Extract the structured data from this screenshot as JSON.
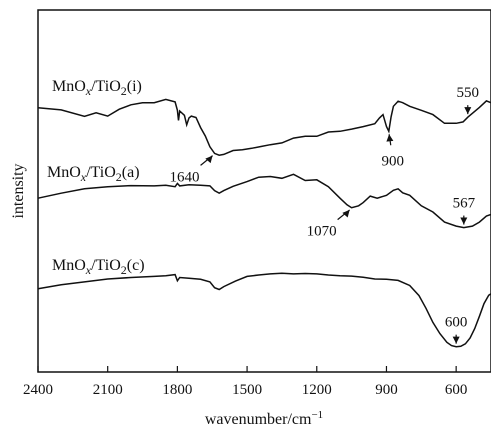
{
  "chart_data": {
    "type": "line",
    "xlabel_base": "wavenumber/cm",
    "xlabel_sup": "−1",
    "ylabel": "intensity",
    "xlim": [
      2400,
      450
    ],
    "ylim": [
      0,
      100
    ],
    "x_reversed": true,
    "x_ticks": [
      2400,
      2100,
      1800,
      1500,
      1200,
      900,
      600
    ],
    "grid": false,
    "series": [
      {
        "name_parts": [
          "MnO",
          "x",
          "/TiO",
          "2",
          "(i)"
        ],
        "points": [
          [
            2400,
            73
          ],
          [
            2300,
            72.4
          ],
          [
            2200,
            70.6
          ],
          [
            2150,
            71.6
          ],
          [
            2100,
            70.7
          ],
          [
            2050,
            72.6
          ],
          [
            2000,
            73.8
          ],
          [
            1950,
            74.4
          ],
          [
            1900,
            74.4
          ],
          [
            1850,
            75.3
          ],
          [
            1810,
            74.6
          ],
          [
            1800,
            72.3
          ],
          [
            1795,
            69.5
          ],
          [
            1790,
            72.1
          ],
          [
            1770,
            70.9
          ],
          [
            1760,
            68.3
          ],
          [
            1750,
            70.2
          ],
          [
            1740,
            70.7
          ],
          [
            1720,
            70.3
          ],
          [
            1700,
            67.5
          ],
          [
            1680,
            65.2
          ],
          [
            1660,
            62.2
          ],
          [
            1640,
            60.4
          ],
          [
            1620,
            59.9
          ],
          [
            1600,
            60.1
          ],
          [
            1560,
            61.2
          ],
          [
            1520,
            61.4
          ],
          [
            1480,
            61.8
          ],
          [
            1440,
            62.3
          ],
          [
            1400,
            62.8
          ],
          [
            1350,
            63.3
          ],
          [
            1300,
            64.6
          ],
          [
            1250,
            65.1
          ],
          [
            1200,
            65.1
          ],
          [
            1150,
            66.3
          ],
          [
            1100,
            66.5
          ],
          [
            1050,
            67.1
          ],
          [
            1000,
            67.8
          ],
          [
            950,
            68.6
          ],
          [
            930,
            70.2
          ],
          [
            915,
            71.1
          ],
          [
            900,
            67.8
          ],
          [
            890,
            66.5
          ],
          [
            880,
            70.5
          ],
          [
            870,
            73.4
          ],
          [
            850,
            74.8
          ],
          [
            830,
            74.4
          ],
          [
            800,
            73.4
          ],
          [
            750,
            72.3
          ],
          [
            700,
            71.1
          ],
          [
            650,
            68.7
          ],
          [
            600,
            68.7
          ],
          [
            570,
            69.1
          ],
          [
            550,
            70.4
          ],
          [
            500,
            73.1
          ],
          [
            470,
            74.9
          ],
          [
            450,
            74.4
          ]
        ]
      },
      {
        "name_parts": [
          "MnO",
          "x",
          "/TiO",
          "2",
          "(a)"
        ],
        "points": [
          [
            2400,
            48
          ],
          [
            2300,
            49.4
          ],
          [
            2200,
            50.6
          ],
          [
            2100,
            51.2
          ],
          [
            2000,
            51.5
          ],
          [
            1900,
            51.4
          ],
          [
            1850,
            51.6
          ],
          [
            1810,
            51.2
          ],
          [
            1800,
            52.1
          ],
          [
            1790,
            51.4
          ],
          [
            1750,
            51.7
          ],
          [
            1700,
            51.6
          ],
          [
            1660,
            51.4
          ],
          [
            1640,
            50.1
          ],
          [
            1620,
            49.4
          ],
          [
            1600,
            50.1
          ],
          [
            1560,
            51.3
          ],
          [
            1500,
            52.6
          ],
          [
            1450,
            53.8
          ],
          [
            1400,
            54
          ],
          [
            1350,
            53.5
          ],
          [
            1300,
            54.6
          ],
          [
            1250,
            52.9
          ],
          [
            1200,
            53.1
          ],
          [
            1150,
            51.2
          ],
          [
            1100,
            48
          ],
          [
            1070,
            46.2
          ],
          [
            1050,
            45.4
          ],
          [
            1020,
            45.9
          ],
          [
            1000,
            46.8
          ],
          [
            970,
            48.6
          ],
          [
            940,
            48
          ],
          [
            900,
            48.8
          ],
          [
            870,
            50.2
          ],
          [
            850,
            50.6
          ],
          [
            830,
            49.5
          ],
          [
            800,
            48.8
          ],
          [
            750,
            45.9
          ],
          [
            700,
            44.2
          ],
          [
            650,
            41.4
          ],
          [
            600,
            40.3
          ],
          [
            567,
            39.9
          ],
          [
            530,
            40.3
          ],
          [
            500,
            41.4
          ],
          [
            470,
            43.1
          ],
          [
            450,
            43.5
          ]
        ]
      },
      {
        "name_parts": [
          "MnO",
          "x",
          "/TiO",
          "2",
          "(c)"
        ],
        "points": [
          [
            2400,
            23
          ],
          [
            2300,
            24.1
          ],
          [
            2200,
            24.9
          ],
          [
            2100,
            25.7
          ],
          [
            2000,
            26.1
          ],
          [
            1900,
            26.4
          ],
          [
            1850,
            26.6
          ],
          [
            1810,
            26.9
          ],
          [
            1800,
            25.2
          ],
          [
            1790,
            26.1
          ],
          [
            1750,
            25.9
          ],
          [
            1700,
            25.6
          ],
          [
            1660,
            24.9
          ],
          [
            1640,
            23.3
          ],
          [
            1620,
            22.8
          ],
          [
            1600,
            23.6
          ],
          [
            1550,
            25.1
          ],
          [
            1500,
            26.4
          ],
          [
            1450,
            26.8
          ],
          [
            1400,
            27.1
          ],
          [
            1350,
            27.3
          ],
          [
            1300,
            27.1
          ],
          [
            1250,
            27.2
          ],
          [
            1200,
            27.1
          ],
          [
            1150,
            26.8
          ],
          [
            1100,
            26.6
          ],
          [
            1050,
            26.5
          ],
          [
            1000,
            26.2
          ],
          [
            950,
            25.7
          ],
          [
            900,
            25.6
          ],
          [
            850,
            25.3
          ],
          [
            800,
            23.9
          ],
          [
            760,
            21.1
          ],
          [
            730,
            17.6
          ],
          [
            700,
            13.7
          ],
          [
            670,
            10.6
          ],
          [
            640,
            8.2
          ],
          [
            620,
            7.3
          ],
          [
            600,
            7
          ],
          [
            580,
            7.1
          ],
          [
            560,
            7.8
          ],
          [
            540,
            9.4
          ],
          [
            520,
            12
          ],
          [
            500,
            15.4
          ],
          [
            480,
            18.9
          ],
          [
            460,
            21.2
          ],
          [
            450,
            21.6
          ]
        ]
      }
    ],
    "annotations": [
      {
        "text": "1640",
        "x": 1640,
        "y": 60.4,
        "from": "bottom-left"
      },
      {
        "text": "900",
        "x": 890,
        "y": 66.5,
        "from": "below"
      },
      {
        "text": "550",
        "x": 550,
        "y": 70.4,
        "from": "above"
      },
      {
        "text": "1070",
        "x": 1050,
        "y": 45.4,
        "from": "bottom-left"
      },
      {
        "text": "567",
        "x": 567,
        "y": 39.9,
        "from": "above"
      },
      {
        "text": "600",
        "x": 600,
        "y": 7,
        "from": "above"
      }
    ]
  }
}
